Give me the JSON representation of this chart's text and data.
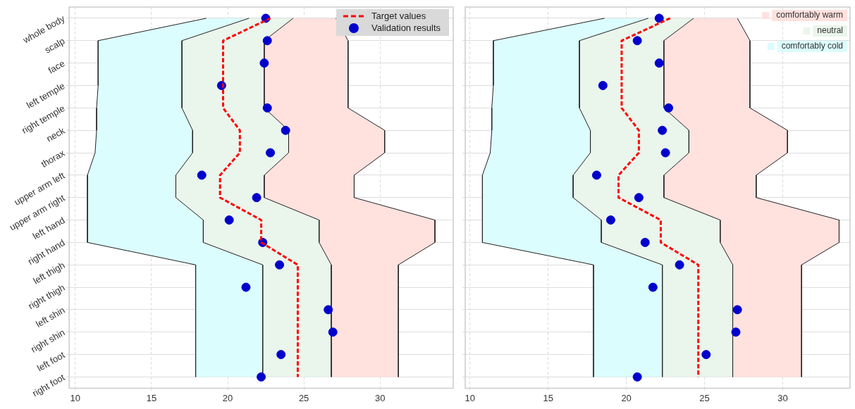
{
  "chart_data": [
    {
      "type": "line",
      "orientation": "horizontal",
      "categories": [
        "whole body",
        "scalp",
        "face",
        "left temple",
        "right temple",
        "neck",
        "thorax",
        "upper arm left",
        "upper arm right",
        "left hand",
        "right hand",
        "left thigh",
        "right thigh",
        "left shin",
        "right shin",
        "left foot",
        "right foot"
      ],
      "xlim": [
        9.6,
        34.8
      ],
      "xticks": [
        10,
        15,
        20,
        25,
        30
      ],
      "grid": true,
      "legend": "top right",
      "series": [
        {
          "color": "#222222",
          "marker": "none",
          "line_style": "solid",
          "values": [
            18.6,
            11.5,
            11.5,
            11.5,
            11.4,
            11.4,
            11.3,
            10.8,
            10.8,
            10.8,
            10.8,
            17.9,
            17.9,
            17.9,
            17.9,
            17.9,
            17.9
          ]
        },
        {
          "type": "area",
          "color": "#dcfdfd",
          "values": [
            21.4,
            17.0,
            17.0,
            17.0,
            17.0,
            17.7,
            17.7,
            16.6,
            16.6,
            18.4,
            18.4,
            22.3,
            22.3,
            22.3,
            22.3,
            22.3,
            22.3
          ]
        },
        {
          "type": "area",
          "color": "#eaf5ec",
          "values": [
            24.3,
            22.4,
            22.4,
            22.4,
            22.4,
            24.0,
            24.0,
            22.4,
            22.4,
            26.0,
            26.0,
            26.8,
            26.8,
            26.8,
            26.8,
            26.8,
            26.8
          ]
        },
        {
          "type": "area",
          "color": "#ffe1de",
          "values": [
            27.1,
            27.9,
            27.9,
            27.9,
            27.9,
            30.3,
            30.3,
            28.3,
            28.3,
            33.6,
            33.6,
            31.2,
            31.2,
            31.2,
            31.2,
            31.2,
            31.2
          ]
        },
        {
          "name": "Target values",
          "color": "#ff0000",
          "line_style": "dashed",
          "marker": "none",
          "values": [
            22.8,
            19.7,
            19.7,
            19.7,
            19.7,
            20.8,
            20.8,
            19.5,
            19.5,
            22.2,
            22.2,
            24.6,
            24.6,
            24.6,
            24.6,
            24.6,
            24.6
          ]
        },
        {
          "type": "scatter",
          "name": "Validation results",
          "color": "#0000cc",
          "marker": "circle",
          "values": [
            22.5,
            22.6,
            22.4,
            19.6,
            22.6,
            23.8,
            22.8,
            18.3,
            21.9,
            20.1,
            22.3,
            23.4,
            21.2,
            26.6,
            26.9,
            23.5,
            22.2
          ]
        }
      ]
    },
    {
      "type": "line",
      "orientation": "horizontal",
      "categories": [
        null,
        null,
        null,
        null,
        null,
        null,
        null,
        null,
        null,
        null,
        null,
        null,
        null,
        null,
        null,
        null,
        null
      ],
      "xlim": [
        9.7,
        34.3
      ],
      "xticks": [
        10,
        15,
        20,
        25,
        30
      ],
      "grid": true,
      "legend": "top right",
      "tick_labels": "x",
      "series": [
        {
          "color": "#222222",
          "marker": "none",
          "line_style": "solid",
          "values": [
            18.6,
            11.5,
            11.5,
            11.5,
            11.4,
            11.4,
            11.3,
            10.8,
            10.8,
            10.8,
            10.8,
            17.9,
            17.9,
            17.9,
            17.9,
            17.9,
            17.9
          ]
        },
        {
          "type": "area",
          "name": "comfortably cold",
          "color": "#dcfdfd",
          "values": [
            21.4,
            17.0,
            17.0,
            17.0,
            17.0,
            17.7,
            17.7,
            16.6,
            16.6,
            18.4,
            18.4,
            22.3,
            22.3,
            22.3,
            22.3,
            22.3,
            22.3
          ]
        },
        {
          "type": "area",
          "name": "neutral",
          "color": "#eaf5ec",
          "values": [
            24.3,
            22.4,
            22.4,
            22.4,
            22.4,
            24.0,
            24.0,
            22.4,
            22.4,
            26.0,
            26.0,
            26.8,
            26.8,
            26.8,
            26.8,
            26.8,
            26.8
          ]
        },
        {
          "type": "area",
          "name": "comfortably warm",
          "color": "#ffe1de",
          "values": [
            27.1,
            27.9,
            27.9,
            27.9,
            27.9,
            30.3,
            30.3,
            28.3,
            28.3,
            33.6,
            33.6,
            31.2,
            31.2,
            31.2,
            31.2,
            31.2,
            31.2
          ]
        },
        {
          "color": "#ff0000",
          "line_style": "dashed",
          "marker": "none",
          "values": [
            22.8,
            19.7,
            19.7,
            19.7,
            19.7,
            20.8,
            20.8,
            19.5,
            19.5,
            22.2,
            22.2,
            24.6,
            24.6,
            24.6,
            24.6,
            24.6,
            24.6
          ]
        },
        {
          "type": "scatter",
          "color": "#0000cc",
          "marker": "circle",
          "values": [
            22.1,
            20.7,
            22.1,
            18.5,
            22.7,
            22.3,
            22.5,
            18.1,
            20.8,
            19.0,
            21.2,
            23.4,
            21.7,
            27.1,
            27.0,
            25.1,
            20.7
          ]
        }
      ]
    }
  ]
}
